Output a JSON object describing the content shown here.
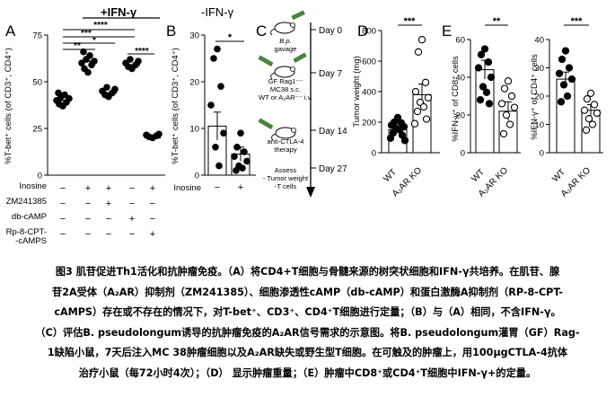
{
  "panels": {
    "A": {
      "letter": "A",
      "treatment_header": "+IFN-γ",
      "ylabel": "%T-bet⁺ cells (of CD3⁺, CD4⁺)",
      "ylim": [
        0,
        75
      ],
      "yticks": [
        "0",
        "25",
        "50",
        "75"
      ],
      "row_labels": [
        "Inosine",
        "ZM241385",
        "db-cAMP",
        "Rp-8-CPT-",
        "-cAMPS"
      ],
      "signs": [
        [
          "−",
          "+",
          "+",
          "−",
          "+",
          "−"
        ],
        [
          "−",
          "−",
          "+",
          "−",
          "−",
          "−"
        ],
        [
          "−",
          "−",
          "−",
          "+",
          "−",
          "+"
        ],
        [
          "−",
          "−",
          "−",
          "−",
          "+",
          "−"
        ]
      ],
      "significance": [
        "****",
        "***",
        "*",
        "**",
        "****"
      ]
    },
    "B": {
      "letter": "B",
      "treatment_header": "-IFN-γ",
      "ylabel": "%T-bet⁺ cells (of CD3⁺, CD4⁺)",
      "ylim": [
        0,
        30
      ],
      "yticks": [
        "0",
        "10",
        "20",
        "30"
      ],
      "row_label": "Inosine",
      "signs": [
        "−",
        "+"
      ],
      "significance": "*"
    },
    "C": {
      "letter": "C",
      "timeline": [
        {
          "day": "Day 0",
          "text": [
            "B.p.",
            "gavage"
          ]
        },
        {
          "day": "Day 7",
          "text": [
            "GF Rag1⁻⁻",
            "MC38 s.c.",
            "WT or A₂AR⁻⁻ i.v."
          ]
        },
        {
          "day": "Day 14",
          "text": [
            "anti-CTLA-4",
            "therapy"
          ]
        },
        {
          "day": "Day 27",
          "text": [
            "Assess",
            "- Tumor weight",
            "-T cells"
          ]
        }
      ]
    },
    "D": {
      "letter": "D",
      "ylabel": "Tumor weight (mg)",
      "ylim": [
        0,
        800
      ],
      "yticks": [
        "0",
        "200",
        "400",
        "600",
        "800"
      ],
      "groups": [
        "WT",
        "A₂AR KO"
      ],
      "significance": "***"
    },
    "E": {
      "letter": "E",
      "left_ylabel": "%IFN-γ⁺ of CD8⁺ cells",
      "left_ylim": [
        0,
        60
      ],
      "left_yticks": [
        "0",
        "20",
        "40",
        "60"
      ],
      "right_ylabel": "%IFN-γ⁺ of CD4⁺ cells",
      "right_ylim": [
        0,
        40
      ],
      "right_yticks": [
        "0",
        "10",
        "20",
        "30",
        "40"
      ],
      "groups": [
        "WT",
        "A₂AR KO"
      ],
      "left_significance": "**",
      "right_significance": "***"
    }
  },
  "chart_data": [
    {
      "type": "scatter",
      "title": "+IFN-γ",
      "ylabel": "%T-bet⁺ cells (of CD3⁺, CD4⁺)",
      "ylim": [
        0,
        75
      ],
      "categories": [
        "−/−/−/−",
        "Inosine",
        "Inosine+ZM241385",
        "db-cAMP",
        "Inosine+Rp-8-CPT-cAMPS",
        "db-cAMP+Rp-8-CPT-cAMPS"
      ],
      "values": [
        40,
        61,
        44,
        59,
        20,
        0
      ],
      "points": [
        [
          37,
          38,
          39,
          40,
          41,
          42,
          43,
          44
        ],
        [
          55,
          57,
          59,
          60,
          61,
          62,
          64,
          66
        ],
        [
          42,
          43,
          44,
          45,
          46,
          47
        ],
        [
          57,
          58,
          59,
          60,
          61,
          62
        ],
        [
          20,
          20.5,
          21,
          21.5,
          22
        ],
        []
      ]
    },
    {
      "type": "scatter",
      "title": "-IFN-γ",
      "ylabel": "%T-bet⁺ cells (of CD3⁺, CD4⁺)",
      "ylim": [
        0,
        30
      ],
      "categories": [
        "Inosine −",
        "Inosine +"
      ],
      "values": [
        10.5,
        4.5
      ],
      "errors": [
        3,
        1.5
      ],
      "points": [
        [
          27,
          25,
          19,
          15,
          9,
          6,
          2
        ],
        [
          9,
          6,
          5,
          4,
          3,
          2,
          1.5,
          1
        ]
      ]
    },
    {
      "type": "bar",
      "ylabel": "Tumor weight (mg)",
      "ylim": [
        0,
        800
      ],
      "categories": [
        "WT",
        "A₂AR KO"
      ],
      "values": [
        150,
        380
      ],
      "errors": [
        20,
        70
      ],
      "points": [
        [
          230,
          200,
          195,
          180,
          170,
          160,
          150,
          130,
          115,
          95,
          80
        ],
        [
          740,
          660,
          460,
          400,
          360,
          330,
          300,
          270,
          220,
          190
        ]
      ]
    },
    {
      "type": "bar",
      "ylabel": "%IFN-γ⁺ of CD8⁺ cells",
      "ylim": [
        0,
        60
      ],
      "categories": [
        "WT",
        "A₂AR KO"
      ],
      "values": [
        44,
        22
      ],
      "errors": [
        5,
        5
      ],
      "points": [
        [
          55,
          52,
          48,
          45,
          40,
          35,
          32,
          28,
          26
        ],
        [
          38,
          34,
          30,
          26,
          24,
          20,
          15,
          10
        ]
      ]
    },
    {
      "type": "bar",
      "ylabel": "%IFN-γ⁺ of CD4⁺ cells",
      "ylim": [
        0,
        40
      ],
      "categories": [
        "WT",
        "A₂AR KO"
      ],
      "values": [
        26,
        15
      ],
      "errors": [
        2.5,
        2
      ],
      "points": [
        [
          36,
          33,
          30,
          28,
          26,
          24,
          20,
          18
        ],
        [
          21,
          19,
          17,
          15,
          14,
          12,
          10,
          8
        ]
      ]
    }
  ],
  "caption": {
    "lines": [
      "图3 肌苷促进Th1活化和抗肿瘤免疫。（A）将CD4+T细胞与骨髓来源的树突状细胞和IFN-γ共培养。在肌苷、腺",
      "苷2A受体（A₂AR）抑制剂（ZM241385）、细胞渗透性cAMP（db-cAMP）和蛋白激酶A抑制剂（RP-8-CPT-",
      "cAMPS）存在或不存在的情况下，对T-bet⁺、CD3⁺、CD4⁺T细胞进行定量；（B）与（A）相同，不含IFN-γ。",
      "（C）评估B. pseudolongum诱导的抗肿瘤免疫的A₂AR信号需求的示意图。将B. pseudolongum灌胃（GF）Rag-",
      "1缺陷小鼠，7天后注入MC 38肿瘤细胞以及A₂AR缺失或野生型T细胞。在可触及的肿瘤上，用100μgCTLA-4抗体",
      "治疗小鼠（每72小时4次）；（D） 显示肿瘤重量；（E）肿瘤中CD8⁺或CD4⁺T细胞中IFN-γ+的定量。"
    ]
  }
}
